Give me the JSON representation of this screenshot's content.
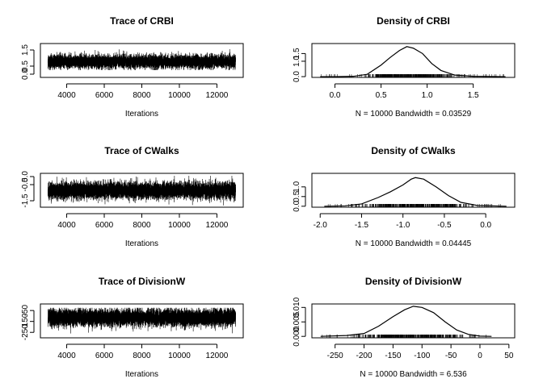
{
  "chart_data": [
    {
      "type": "line",
      "title": "Trace of CRBI",
      "xlabel": "Iterations",
      "ylabel": "",
      "xlim": [
        2600,
        13400
      ],
      "ylim": [
        -0.2,
        1.9
      ],
      "x_ticks": [
        4000,
        6000,
        8000,
        10000,
        12000
      ],
      "y_ticks": [
        0.0,
        0.5,
        1.5
      ],
      "y_tick_labels": [
        "0.0",
        "0.5",
        "1.5"
      ],
      "series": [
        {
          "x_range": [
            3001,
            13000
          ],
          "mean": 0.78,
          "sd": 0.2,
          "min": 0.25,
          "max": 1.8
        }
      ]
    },
    {
      "type": "line",
      "title": "Density of CRBI",
      "xlabel": "N = 10000   Bandwidth = 0.03529",
      "ylabel": "",
      "xlim": [
        -0.25,
        1.95
      ],
      "ylim": [
        -0.05,
        2.15
      ],
      "x_ticks": [
        0.0,
        0.5,
        1.0,
        1.5
      ],
      "x_tick_labels": [
        "0.0",
        "0.5",
        "1.0",
        "1.5"
      ],
      "y_ticks": [
        0.0,
        1.0,
        1.5
      ],
      "y_tick_labels": [
        "0.0",
        "1.0",
        "1.5"
      ],
      "series": [
        {
          "x": [
            -0.16,
            0.0,
            0.2,
            0.35,
            0.5,
            0.6,
            0.7,
            0.78,
            0.85,
            0.95,
            1.05,
            1.15,
            1.3,
            1.5,
            1.85
          ],
          "y": [
            0.0,
            0.0,
            0.02,
            0.15,
            0.75,
            1.25,
            1.7,
            1.95,
            1.85,
            1.5,
            0.85,
            0.4,
            0.1,
            0.02,
            0.0
          ]
        }
      ],
      "rug": true
    },
    {
      "type": "line",
      "title": "Trace of CWalks",
      "xlabel": "Iterations",
      "ylabel": "",
      "xlim": [
        2600,
        13400
      ],
      "ylim": [
        -1.9,
        0.2
      ],
      "x_ticks": [
        4000,
        6000,
        8000,
        10000,
        12000
      ],
      "y_ticks": [
        0.0,
        -0.5,
        -1.5
      ],
      "y_tick_labels": [
        "0.0",
        "-0.5",
        "-1.5"
      ],
      "series": [
        {
          "x_range": [
            3001,
            13000
          ],
          "mean": -0.87,
          "sd": 0.25,
          "min": -1.85,
          "max": 0.05
        }
      ]
    },
    {
      "type": "line",
      "title": "Density of CWalks",
      "xlabel": "N = 10000   Bandwidth = 0.04445",
      "ylabel": "",
      "xlim": [
        -2.1,
        0.35
      ],
      "ylim": [
        -0.05,
        1.7
      ],
      "x_ticks": [
        -2.0,
        -1.5,
        -1.0,
        -0.5,
        0.0
      ],
      "x_tick_labels": [
        "-2.0",
        "-1.5",
        "-1.0",
        "-0.5",
        "0.0"
      ],
      "y_ticks": [
        0.0,
        0.5,
        1.0
      ],
      "y_tick_labels": [
        "0.0",
        "0.5",
        "1.0"
      ],
      "series": [
        {
          "x": [
            -1.95,
            -1.7,
            -1.5,
            -1.3,
            -1.15,
            -1.0,
            -0.9,
            -0.85,
            -0.75,
            -0.6,
            -0.45,
            -0.3,
            -0.1,
            0.25
          ],
          "y": [
            0.0,
            0.02,
            0.12,
            0.45,
            0.75,
            1.1,
            1.4,
            1.48,
            1.4,
            1.0,
            0.55,
            0.2,
            0.04,
            0.0
          ]
        }
      ],
      "rug": true
    },
    {
      "type": "line",
      "title": "Trace of DivisionW",
      "xlabel": "Iterations",
      "ylabel": "",
      "xlim": [
        2600,
        13400
      ],
      "ylim": [
        -300,
        10
      ],
      "x_ticks": [
        4000,
        6000,
        8000,
        10000,
        12000
      ],
      "y_ticks": [
        -50,
        -150,
        -250
      ],
      "y_tick_labels": [
        "-50",
        "-150",
        "-250"
      ],
      "series": [
        {
          "x_range": [
            3001,
            13000
          ],
          "mean": -115,
          "sd": 38,
          "min": -260,
          "max": -25
        }
      ]
    },
    {
      "type": "line",
      "title": "Density of DivisionW",
      "xlabel": "N = 10000   Bandwidth = 6.536",
      "ylabel": "",
      "xlim": [
        -290,
        60
      ],
      "ylim": [
        -0.0005,
        0.0112
      ],
      "x_ticks": [
        -250,
        -200,
        -150,
        -100,
        -50,
        0,
        50
      ],
      "x_tick_labels": [
        "-250",
        "-200",
        "-150",
        "-100",
        "-50",
        "0",
        "50"
      ],
      "y_ticks": [
        0.0,
        0.005,
        0.01
      ],
      "y_tick_labels": [
        "0.000",
        "0.005",
        "0.010"
      ],
      "series": [
        {
          "x": [
            -275,
            -230,
            -200,
            -175,
            -150,
            -130,
            -115,
            -100,
            -80,
            -60,
            -40,
            -20,
            0,
            20
          ],
          "y": [
            0.0,
            0.0003,
            0.001,
            0.0035,
            0.0068,
            0.0092,
            0.0104,
            0.01,
            0.0082,
            0.005,
            0.0022,
            0.0007,
            0.0001,
            0.0
          ]
        }
      ],
      "rug": true
    }
  ]
}
